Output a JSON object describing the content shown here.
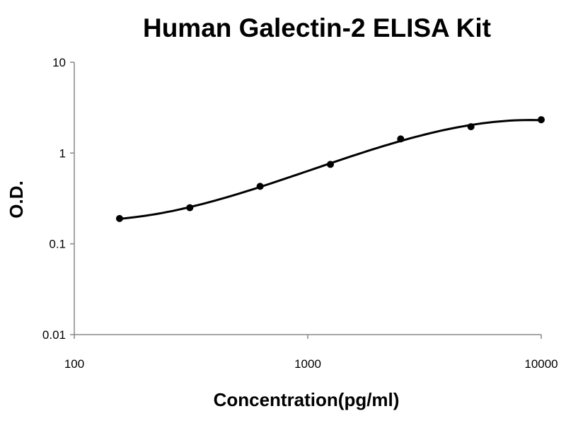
{
  "chart_data": {
    "type": "scatter",
    "title": "Human Galectin-2 ELISA Kit",
    "xlabel": "Concentration(pg/ml)",
    "ylabel": "O.D.",
    "xscale": "log",
    "yscale": "log",
    "xlim": [
      100,
      10000
    ],
    "ylim": [
      0.01,
      10
    ],
    "xticks": [
      "100",
      "1000",
      "10000"
    ],
    "yticks": [
      "0.01",
      "0.1",
      "1",
      "10"
    ],
    "grid": false,
    "legend": "none",
    "fit_curve": true,
    "color": "#000000",
    "series": [
      {
        "x": [
          156.25,
          312.5,
          625,
          1250,
          2500,
          5000,
          10000
        ],
        "y": [
          0.19,
          0.25,
          0.43,
          0.75,
          1.43,
          1.95,
          2.33
        ]
      }
    ]
  }
}
